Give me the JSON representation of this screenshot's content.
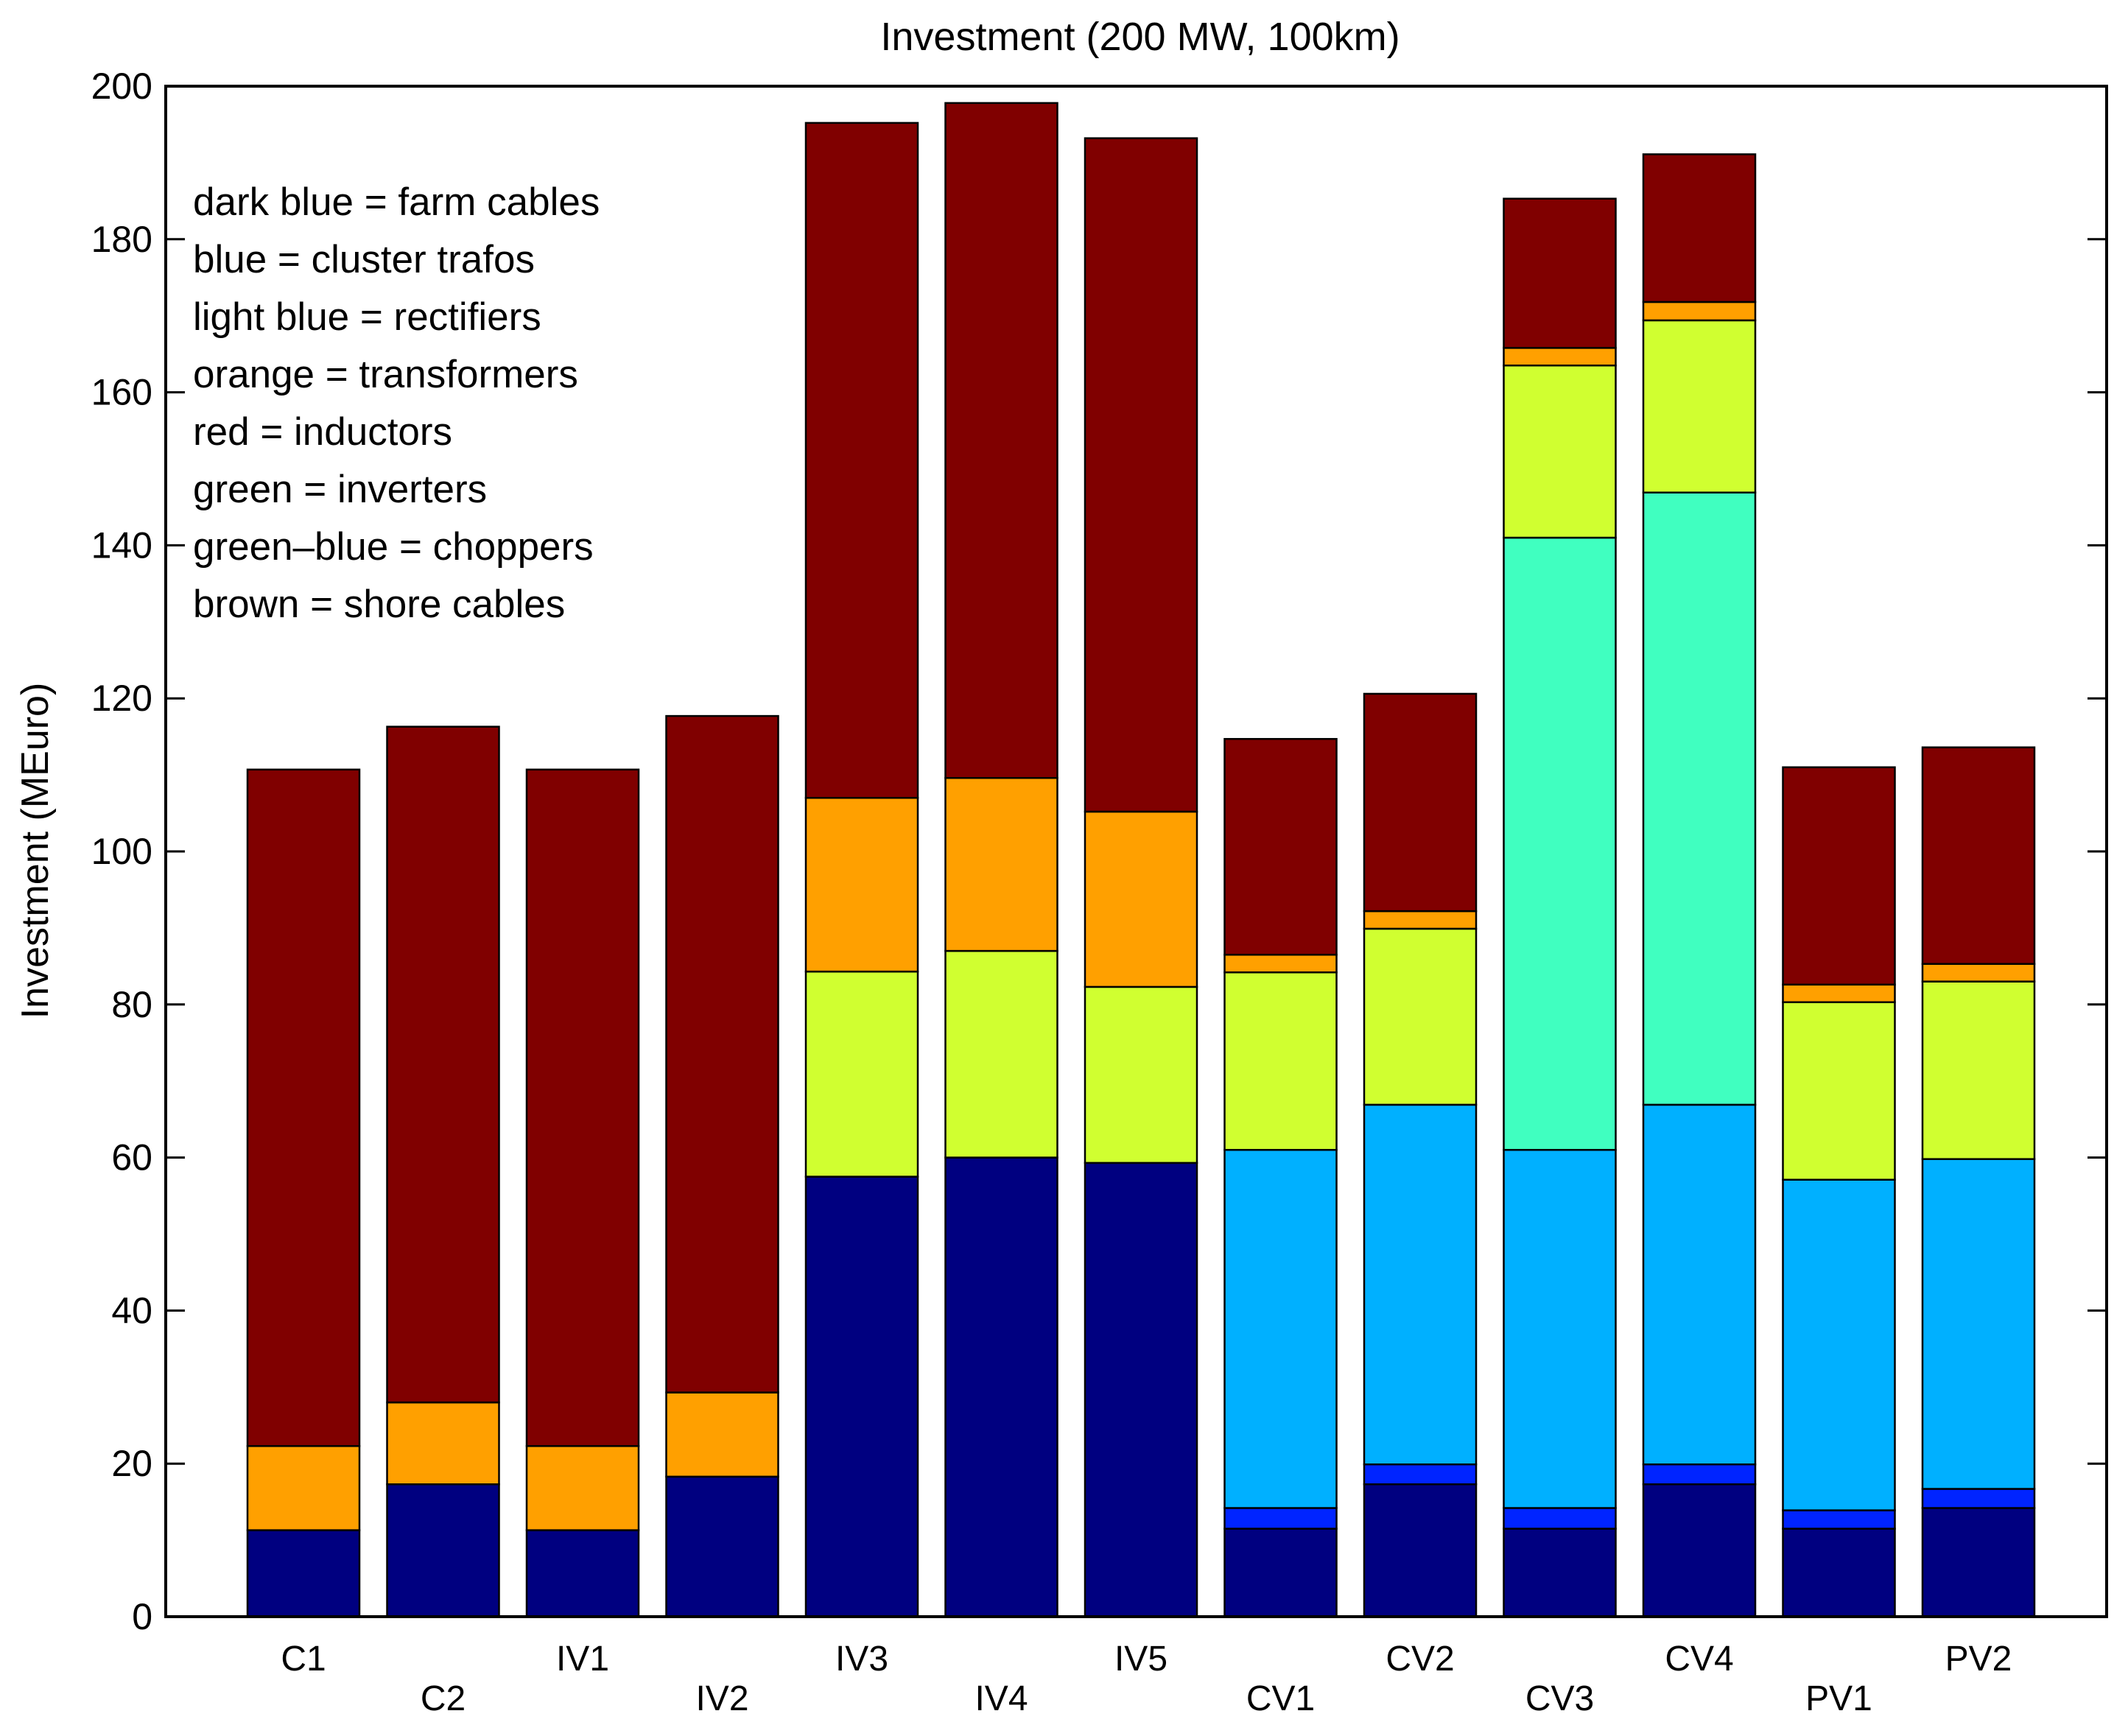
{
  "chart_data": {
    "type": "bar",
    "stacked": true,
    "title": "Investment (200 MW, 100km)",
    "xlabel": "",
    "ylabel": "Investment (MEuro)",
    "ylim": [
      0,
      200
    ],
    "yticks": [
      0,
      20,
      40,
      60,
      80,
      100,
      120,
      140,
      160,
      180,
      200
    ],
    "categories": [
      "C1",
      "C2",
      "IV1",
      "IV2",
      "IV3",
      "IV4",
      "IV5",
      "CV1",
      "CV2",
      "CV3",
      "CV4",
      "PV1",
      "PV2"
    ],
    "series": [
      {
        "name": "farm cables",
        "color": "#000080",
        "values": [
          11.3,
          17.3,
          11.3,
          18.3,
          57.5,
          60,
          59.3,
          11.5,
          17.3,
          11.5,
          17.3,
          11.5,
          14.2
        ]
      },
      {
        "name": "cluster trafos",
        "color": "#0024ff",
        "values": [
          0,
          0,
          0,
          0,
          0,
          0,
          0,
          2.7,
          2.6,
          2.7,
          2.6,
          2.4,
          2.5
        ]
      },
      {
        "name": "rectifiers",
        "color": "#00b0ff",
        "values": [
          0,
          0,
          0,
          0,
          0,
          0,
          0,
          46.8,
          47,
          46.8,
          47,
          43.2,
          43.1
        ]
      },
      {
        "name": "choppers",
        "color": "#40ffc0",
        "values": [
          0,
          0,
          0,
          0,
          0,
          0,
          0,
          0,
          0,
          80,
          80,
          0,
          0
        ]
      },
      {
        "name": "inverters",
        "color": "#d0ff30",
        "values": [
          0,
          0,
          0,
          0,
          26.8,
          27,
          23,
          23.2,
          23,
          22.5,
          22.5,
          23.2,
          23.2
        ]
      },
      {
        "name": "inductors",
        "color": "#ff2000",
        "values": [
          0,
          0,
          0,
          0,
          0,
          0,
          0,
          0,
          0,
          0,
          0,
          0,
          0
        ]
      },
      {
        "name": "transformers",
        "color": "#ffa000",
        "values": [
          11,
          10.7,
          11,
          11,
          22.7,
          22.6,
          22.9,
          2.3,
          2.3,
          2.3,
          2.4,
          2.3,
          2.3
        ]
      },
      {
        "name": "shore cables",
        "color": "#800000",
        "values": [
          88.4,
          88.3,
          88.4,
          88.4,
          88.2,
          88.2,
          88,
          28.2,
          28.4,
          19.5,
          19.3,
          28.4,
          28.3
        ]
      }
    ],
    "legend_text": [
      "dark blue = farm cables",
      "blue = cluster trafos",
      "light blue = rectifiers",
      "orange = transformers",
      "red = inductors",
      "green = inverters",
      "green–blue = choppers",
      "brown = shore cables"
    ],
    "legend_position": "top-left",
    "grid": false
  }
}
